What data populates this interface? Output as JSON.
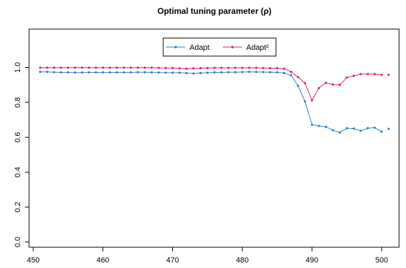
{
  "chart_data": {
    "type": "line",
    "title": "Optimal tuning parameter (ρ)",
    "xlabel": "",
    "ylabel": "",
    "xlim": [
      449.4,
      502.5
    ],
    "ylim": [
      -0.03,
      1.22
    ],
    "xticks": [
      450,
      460,
      470,
      480,
      490,
      500
    ],
    "yticks": [
      0.0,
      0.2,
      0.4,
      0.6,
      0.8,
      1.0
    ],
    "xtick_labels": [
      "450",
      "460",
      "470",
      "480",
      "490",
      "500"
    ],
    "ytick_labels": [
      "0.0",
      "0.2",
      "0.4",
      "0.6",
      "0.8",
      "1.0"
    ],
    "x": [
      451,
      452,
      453,
      454,
      455,
      456,
      457,
      458,
      459,
      460,
      461,
      462,
      463,
      464,
      465,
      466,
      467,
      468,
      469,
      470,
      471,
      472,
      473,
      474,
      475,
      476,
      477,
      478,
      479,
      480,
      481,
      482,
      483,
      484,
      485,
      486,
      487,
      488,
      489,
      490,
      491,
      492,
      493,
      494,
      495,
      496,
      497,
      498,
      499,
      500
    ],
    "legend_position": "top",
    "grid": false,
    "series": [
      {
        "name": "Adapt",
        "color": "#2b82c9",
        "values": [
          0.975,
          0.975,
          0.973,
          0.972,
          0.972,
          0.971,
          0.971,
          0.972,
          0.972,
          0.972,
          0.972,
          0.972,
          0.972,
          0.972,
          0.973,
          0.973,
          0.972,
          0.971,
          0.97,
          0.97,
          0.97,
          0.968,
          0.966,
          0.968,
          0.97,
          0.972,
          0.972,
          0.973,
          0.973,
          0.974,
          0.975,
          0.974,
          0.974,
          0.973,
          0.972,
          0.968,
          0.955,
          0.895,
          0.805,
          0.672,
          0.665,
          0.66,
          0.64,
          0.628,
          0.652,
          0.65,
          0.637,
          0.652,
          0.655,
          0.632
        ],
        "extra_point": {
          "x": 501,
          "y": 0.648
        }
      },
      {
        "name": "Adapt²",
        "color": "#d6246e",
        "values": [
          0.999,
          0.999,
          0.999,
          0.999,
          0.999,
          0.999,
          0.999,
          0.999,
          0.999,
          0.999,
          0.999,
          0.999,
          0.999,
          0.999,
          0.999,
          0.999,
          0.999,
          0.998,
          0.997,
          0.997,
          0.995,
          0.993,
          0.995,
          0.996,
          0.997,
          0.998,
          0.998,
          0.998,
          0.998,
          0.998,
          0.998,
          0.998,
          0.997,
          0.996,
          0.996,
          0.993,
          0.975,
          0.945,
          0.91,
          0.812,
          0.882,
          0.912,
          0.902,
          0.9,
          0.942,
          0.952,
          0.962,
          0.962,
          0.962,
          0.958
        ],
        "extra_point": {
          "x": 501,
          "y": 0.958
        }
      }
    ]
  }
}
